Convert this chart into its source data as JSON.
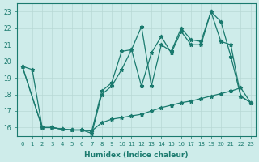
{
  "xlabel": "Humidex (Indice chaleur)",
  "bg_color": "#ceecea",
  "line_color": "#1a7a6e",
  "grid_color": "#b8d8d5",
  "xlim": [
    -0.5,
    23.5
  ],
  "ylim": [
    15.5,
    23.5
  ],
  "xticks": [
    0,
    1,
    2,
    3,
    4,
    5,
    6,
    7,
    8,
    9,
    10,
    11,
    12,
    13,
    14,
    15,
    16,
    17,
    18,
    19,
    20,
    21,
    22,
    23
  ],
  "yticks": [
    16,
    17,
    18,
    19,
    20,
    21,
    22,
    23
  ],
  "line1_x": [
    0,
    1,
    2,
    3,
    4,
    5,
    6,
    7,
    8,
    9,
    10,
    11,
    12,
    13,
    14,
    15,
    16,
    17,
    18,
    19,
    20,
    21,
    22,
    23
  ],
  "line1_y": [
    19.7,
    19.5,
    16.0,
    16.0,
    15.9,
    15.85,
    15.85,
    15.8,
    16.3,
    16.5,
    16.6,
    16.7,
    16.8,
    17.0,
    17.2,
    17.35,
    17.5,
    17.6,
    17.75,
    17.9,
    18.05,
    18.2,
    18.4,
    17.5
  ],
  "line2_x": [
    0,
    2,
    3,
    4,
    5,
    6,
    7,
    8,
    9,
    10,
    11,
    12,
    13,
    14,
    15,
    16,
    17,
    18,
    19,
    20,
    21,
    22,
    23
  ],
  "line2_y": [
    19.7,
    16.0,
    16.0,
    15.9,
    15.85,
    15.85,
    15.8,
    18.2,
    18.7,
    20.6,
    20.7,
    22.1,
    18.5,
    21.0,
    20.6,
    22.0,
    21.3,
    21.2,
    23.0,
    22.4,
    20.3,
    17.9,
    17.5
  ],
  "line3_x": [
    0,
    2,
    3,
    4,
    5,
    6,
    7,
    8,
    9,
    10,
    11,
    12,
    13,
    14,
    15,
    16,
    17,
    18,
    19,
    20,
    21,
    22,
    23
  ],
  "line3_y": [
    19.7,
    16.0,
    16.0,
    15.9,
    15.85,
    15.85,
    15.65,
    18.0,
    18.5,
    19.5,
    20.7,
    18.5,
    20.5,
    21.5,
    20.5,
    21.8,
    21.0,
    21.0,
    23.0,
    21.2,
    21.0,
    17.9,
    17.5
  ]
}
